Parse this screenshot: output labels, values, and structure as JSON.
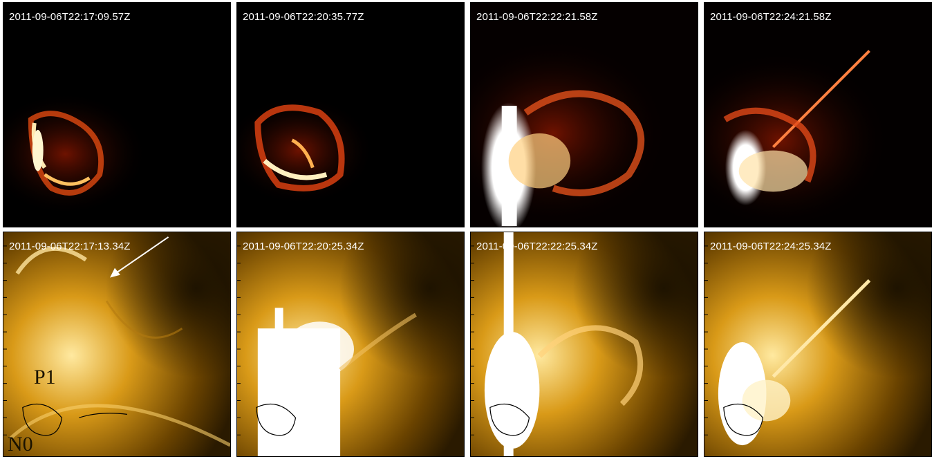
{
  "panels": {
    "top": [
      {
        "timestamp": "2011-09-06T22:17:09.57Z",
        "channel_color": "#c83a00"
      },
      {
        "timestamp": "2011-09-06T22:20:35.77Z",
        "channel_color": "#c83a00"
      },
      {
        "timestamp": "2011-09-06T22:22:21.58Z",
        "channel_color": "#c83a00"
      },
      {
        "timestamp": "2011-09-06T22:24:21.58Z",
        "channel_color": "#c83a00"
      }
    ],
    "bottom": [
      {
        "timestamp": "2011-09-06T22:17:13.34Z",
        "channel_color": "#c8900a"
      },
      {
        "timestamp": "2011-09-06T22:20:25.34Z",
        "channel_color": "#c8900a"
      },
      {
        "timestamp": "2011-09-06T22:22:25.34Z",
        "channel_color": "#c8900a"
      },
      {
        "timestamp": "2011-09-06T22:24:25.34Z",
        "channel_color": "#c8900a"
      }
    ]
  },
  "annotations": {
    "p1": "P1",
    "n0": "N0"
  }
}
